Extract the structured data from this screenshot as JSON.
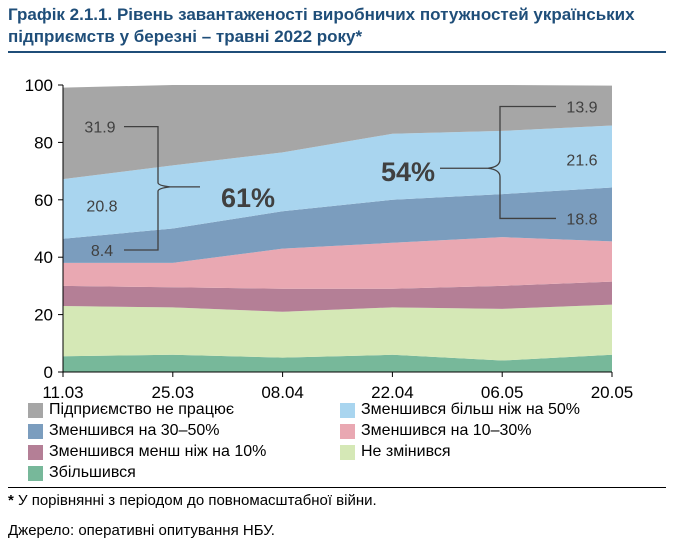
{
  "header": {
    "title_prefix": "Графік 2.1.1.",
    "title_text": "Рівень завантаженості виробничих потужностей українських підприємств у березні – травні 2022 року*"
  },
  "chart_data": {
    "type": "area",
    "stacked": true,
    "categories": [
      "11.03",
      "25.03",
      "08.04",
      "22.04",
      "06.05",
      "20.05"
    ],
    "ylim": [
      0,
      100
    ],
    "yticks": [
      0,
      20,
      40,
      60,
      80,
      100
    ],
    "grid": false,
    "legend_position": "bottom",
    "series": [
      {
        "name": "Збільшився",
        "color": "#77b89a",
        "values": [
          5.5,
          6.0,
          5.0,
          6.0,
          4.0,
          6.0
        ]
      },
      {
        "name": "Не змінився",
        "color": "#d5e8b6",
        "values": [
          17.5,
          16.5,
          16.0,
          16.5,
          18.0,
          17.5
        ]
      },
      {
        "name": "Зменшився менш ніж на 10%",
        "color": "#b47f96",
        "values": [
          7.0,
          7.0,
          8.0,
          6.5,
          8.0,
          8.0
        ]
      },
      {
        "name": "Зменшився на 10–30%",
        "color": "#e9a8b2",
        "values": [
          8.0,
          8.5,
          14.0,
          16.0,
          17.0,
          14.0
        ]
      },
      {
        "name": "Зменшився на 30–50%",
        "color": "#7b9dbe",
        "values": [
          8.4,
          12.0,
          13.0,
          15.0,
          15.0,
          18.8
        ]
      },
      {
        "name": "Зменшився більш ніж на 50%",
        "color": "#a9d5ef",
        "values": [
          20.8,
          22.0,
          20.5,
          23.0,
          22.0,
          21.6
        ]
      },
      {
        "name": "Підприємство не працює",
        "color": "#a6a6a6",
        "values": [
          31.9,
          28.0,
          23.5,
          17.0,
          16.0,
          13.9
        ]
      }
    ],
    "annotations": {
      "left_labels": [
        "31.9",
        "20.8",
        "8.4"
      ],
      "left_total": "61%",
      "right_labels": [
        "13.9",
        "21.6",
        "18.8"
      ],
      "right_total": "54%"
    }
  },
  "legend_layout": [
    [
      "Підприємство не працює",
      "Зменшився більш ніж на 50%"
    ],
    [
      "Зменшився на 30–50%",
      "Зменшився на 10–30%"
    ],
    [
      "Зменшився менш ніж на 10%",
      "Не змінився"
    ],
    [
      "Збільшився"
    ]
  ],
  "footnote": {
    "marker": "*",
    "text": " У порівнянні з періодом до повномасштабної війни."
  },
  "source": "Джерело: оперативні опитування НБУ."
}
